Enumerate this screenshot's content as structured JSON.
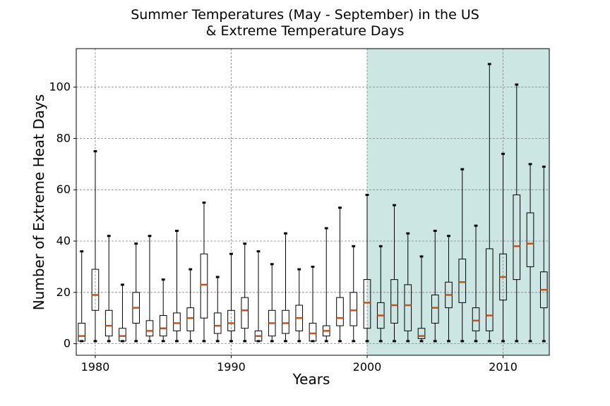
{
  "chart_data": {
    "type": "boxplot",
    "title_line1": "Summer Temperatures (May - September) in the US",
    "title_line2": "& Extreme Temperature Days",
    "xlabel": "Years",
    "ylabel": "Number of Extreme Heat Days",
    "xlim": [
      1978.6,
      2013.4
    ],
    "ylim": [
      -4.5,
      115
    ],
    "xticks": [
      1980,
      1990,
      2000,
      2010
    ],
    "yticks": [
      0,
      20,
      40,
      60,
      80,
      100
    ],
    "grid": true,
    "highlight_range": [
      2000,
      2013.4
    ],
    "highlight_color": "#cce6e3",
    "median_color": "#c0541e",
    "boxes": [
      {
        "year": 1979,
        "min": 1,
        "q1": 1,
        "median": 3,
        "q3": 8,
        "max": 36
      },
      {
        "year": 1980,
        "min": 1,
        "q1": 13,
        "median": 19,
        "q3": 29,
        "max": 75
      },
      {
        "year": 1981,
        "min": 1,
        "q1": 3,
        "median": 7,
        "q3": 13,
        "max": 42
      },
      {
        "year": 1982,
        "min": 1,
        "q1": 1,
        "median": 3,
        "q3": 6,
        "max": 23
      },
      {
        "year": 1983,
        "min": 1,
        "q1": 8,
        "median": 14,
        "q3": 20,
        "max": 39
      },
      {
        "year": 1984,
        "min": 1,
        "q1": 3,
        "median": 5,
        "q3": 9,
        "max": 42
      },
      {
        "year": 1985,
        "min": 1,
        "q1": 3,
        "median": 6,
        "q3": 11,
        "max": 25
      },
      {
        "year": 1986,
        "min": 1,
        "q1": 5,
        "median": 8,
        "q3": 12,
        "max": 44
      },
      {
        "year": 1987,
        "min": 1,
        "q1": 5,
        "median": 10,
        "q3": 14,
        "max": 29
      },
      {
        "year": 1988,
        "min": 1,
        "q1": 10,
        "median": 23,
        "q3": 35,
        "max": 55
      },
      {
        "year": 1989,
        "min": 1,
        "q1": 4,
        "median": 7,
        "q3": 12,
        "max": 26
      },
      {
        "year": 1990,
        "min": 1,
        "q1": 5,
        "median": 8,
        "q3": 13,
        "max": 35
      },
      {
        "year": 1991,
        "min": 1,
        "q1": 6,
        "median": 13,
        "q3": 18,
        "max": 39
      },
      {
        "year": 1992,
        "min": 1,
        "q1": 1,
        "median": 3,
        "q3": 5,
        "max": 36
      },
      {
        "year": 1993,
        "min": 1,
        "q1": 3,
        "median": 8,
        "q3": 13,
        "max": 31
      },
      {
        "year": 1994,
        "min": 1,
        "q1": 4,
        "median": 8,
        "q3": 13,
        "max": 43
      },
      {
        "year": 1995,
        "min": 1,
        "q1": 5,
        "median": 10,
        "q3": 15,
        "max": 29
      },
      {
        "year": 1996,
        "min": 1,
        "q1": 1,
        "median": 4,
        "q3": 8,
        "max": 30
      },
      {
        "year": 1997,
        "min": 1,
        "q1": 3,
        "median": 5,
        "q3": 7,
        "max": 45
      },
      {
        "year": 1998,
        "min": 1,
        "q1": 7,
        "median": 10,
        "q3": 18,
        "max": 53
      },
      {
        "year": 1999,
        "min": 1,
        "q1": 7,
        "median": 13,
        "q3": 20,
        "max": 38
      },
      {
        "year": 2000,
        "min": 1,
        "q1": 6,
        "median": 16,
        "q3": 25,
        "max": 58
      },
      {
        "year": 2001,
        "min": 1,
        "q1": 6,
        "median": 11,
        "q3": 16,
        "max": 38
      },
      {
        "year": 2002,
        "min": 1,
        "q1": 8,
        "median": 15,
        "q3": 25,
        "max": 54
      },
      {
        "year": 2003,
        "min": 1,
        "q1": 5,
        "median": 15,
        "q3": 23,
        "max": 43
      },
      {
        "year": 2004,
        "min": 1,
        "q1": 2,
        "median": 3,
        "q3": 6,
        "max": 34
      },
      {
        "year": 2005,
        "min": 1,
        "q1": 8,
        "median": 14,
        "q3": 19,
        "max": 44
      },
      {
        "year": 2006,
        "min": 1,
        "q1": 14,
        "median": 19,
        "q3": 24,
        "max": 42
      },
      {
        "year": 2007,
        "min": 1,
        "q1": 16,
        "median": 24,
        "q3": 33,
        "max": 68
      },
      {
        "year": 2008,
        "min": 1,
        "q1": 5,
        "median": 9,
        "q3": 14,
        "max": 46
      },
      {
        "year": 2009,
        "min": 1,
        "q1": 5,
        "median": 11,
        "q3": 37,
        "max": 109
      },
      {
        "year": 2010,
        "min": 1,
        "q1": 17,
        "median": 26,
        "q3": 35,
        "max": 74
      },
      {
        "year": 2011,
        "min": 1,
        "q1": 25,
        "median": 38,
        "q3": 58,
        "max": 101
      },
      {
        "year": 2012,
        "min": 1,
        "q1": 30,
        "median": 39,
        "q3": 51,
        "max": 70
      },
      {
        "year": 2013,
        "min": 1,
        "q1": 14,
        "median": 21,
        "q3": 28,
        "max": 69
      }
    ]
  }
}
